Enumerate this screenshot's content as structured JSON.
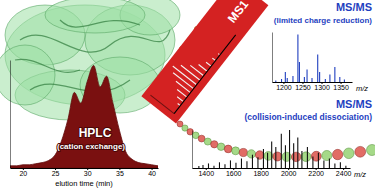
{
  "chart_data": [
    {
      "type": "area",
      "title": "HPLC",
      "subtitle": "(cation exchange)",
      "x_label": "elution time (min)",
      "x": [
        18,
        19,
        20,
        21,
        22,
        23,
        24,
        25,
        26,
        27,
        28,
        29,
        30,
        31,
        32,
        33,
        34,
        35,
        36,
        37,
        38,
        39,
        40,
        41
      ],
      "values": [
        0.02,
        0.02,
        0.03,
        0.03,
        0.04,
        0.05,
        0.07,
        0.12,
        0.25,
        0.45,
        0.7,
        0.6,
        0.8,
        0.95,
        0.75,
        0.85,
        0.6,
        0.35,
        0.15,
        0.08,
        0.05,
        0.04,
        0.03,
        0.02
      ],
      "xlim": [
        18,
        41
      ],
      "xticks": [
        20,
        25,
        30,
        35,
        40
      ],
      "ylim": [
        0,
        1
      ],
      "tick_labels": "x",
      "color": "#7a1010"
    },
    {
      "type": "bar",
      "title": "MS1",
      "x": [
        1150,
        1220,
        1300,
        1380,
        1450,
        1520,
        1600,
        1680,
        1760,
        1850,
        1950,
        2050
      ],
      "values": [
        10,
        25,
        40,
        60,
        85,
        100,
        80,
        55,
        35,
        20,
        12,
        6
      ],
      "xlim": [
        1000,
        2400
      ],
      "ylim": [
        0,
        100
      ],
      "tick_labels": false,
      "color": "#f4f4f4"
    },
    {
      "type": "bar",
      "title": "MS/MS",
      "subtitle": "(limited charge reduction)",
      "x_label": "m/z",
      "x": [
        1180,
        1195,
        1205,
        1210,
        1225,
        1238,
        1242,
        1255,
        1262,
        1275,
        1290,
        1295,
        1310,
        1322,
        1335,
        1348,
        1360
      ],
      "values": [
        3,
        6,
        20,
        8,
        12,
        95,
        40,
        10,
        25,
        8,
        55,
        20,
        6,
        15,
        30,
        10,
        5
      ],
      "xlim": [
        1170,
        1380
      ],
      "xticks": [
        1200,
        1250,
        1300,
        1350
      ],
      "ylim": [
        0,
        100
      ],
      "tick_labels": "x",
      "color": "#1f3fbf"
    },
    {
      "type": "bar",
      "title": "MS/MS",
      "subtitle": "(collision-induced dissociation)",
      "x_label": "m/z",
      "x": [
        1350,
        1380,
        1420,
        1460,
        1500,
        1540,
        1580,
        1620,
        1660,
        1700,
        1740,
        1780,
        1820,
        1850,
        1880,
        1910,
        1950,
        1980,
        2010,
        2040,
        2070,
        2100,
        2140,
        2180,
        2220,
        2260,
        2300,
        2340,
        2380,
        2420
      ],
      "values": [
        5,
        8,
        12,
        6,
        15,
        10,
        20,
        14,
        25,
        18,
        35,
        28,
        50,
        40,
        70,
        55,
        90,
        60,
        100,
        65,
        80,
        45,
        55,
        30,
        40,
        20,
        25,
        12,
        15,
        6
      ],
      "xlim": [
        1300,
        2450
      ],
      "xticks": [
        1400,
        1600,
        1800,
        2000,
        2200,
        2400
      ],
      "ylim": [
        0,
        100
      ],
      "tick_labels": "x",
      "color": "#111111"
    }
  ]
}
